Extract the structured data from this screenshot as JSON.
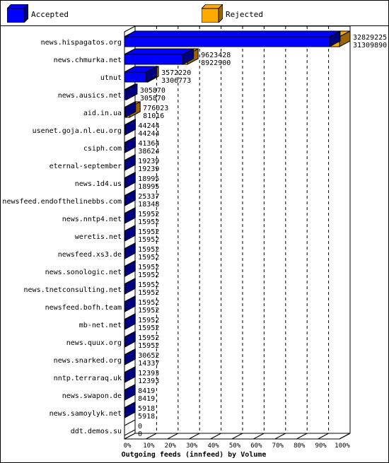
{
  "legend": {
    "accepted_label": "Accepted",
    "rejected_label": "Rejected"
  },
  "colors": {
    "accepted": "#0000ff",
    "rejected": "#ffaa00",
    "shadow_accepted": "#000080",
    "shadow_rejected": "#996600"
  },
  "chart_data": {
    "type": "bar",
    "orientation": "horizontal",
    "stacked": "overlay",
    "title": "",
    "xlabel": "Outgoing feeds (innfeed) by Volume",
    "ylabel": "",
    "xlim": [
      0,
      100
    ],
    "x_ticks": [
      "0%",
      "10%",
      "20%",
      "30%",
      "40%",
      "50%",
      "60%",
      "70%",
      "80%",
      "90%",
      "100%"
    ],
    "grid": "vertical dashed",
    "legend_position": "top",
    "categories": [
      "news.hispagatos.org",
      "news.chmurka.net",
      "utnut",
      "news.ausics.net",
      "aid.in.ua",
      "usenet.goja.nl.eu.org",
      "csiph.com",
      "eternal-september",
      "news.1d4.us",
      "newsfeed.endofthelinebbs.com",
      "news.nntp4.net",
      "weretis.net",
      "newsfeed.xs3.de",
      "news.sonologic.net",
      "news.tnetconsulting.net",
      "newsfeed.bofh.team",
      "mb-net.net",
      "news.quux.org",
      "news.snarked.org",
      "nntp.terraraq.uk",
      "news.swapon.de",
      "news.samoylyk.net",
      "ddt.demos.su"
    ],
    "series": [
      {
        "name": "Accepted",
        "values": [
          32829225,
          9623428,
          3572220,
          305870,
          776023,
          44244,
          41364,
          19239,
          18995,
          25337,
          15952,
          15952,
          15952,
          15952,
          15952,
          15952,
          15952,
          15952,
          30652,
          12393,
          8419,
          5918,
          0
        ]
      },
      {
        "name": "Rejected",
        "values": [
          31309890,
          8922900,
          3306773,
          305870,
          81016,
          44244,
          38624,
          19239,
          18995,
          18348,
          15952,
          15952,
          15952,
          15952,
          15952,
          15952,
          15952,
          15952,
          14337,
          12393,
          8419,
          5918,
          0
        ]
      }
    ]
  }
}
